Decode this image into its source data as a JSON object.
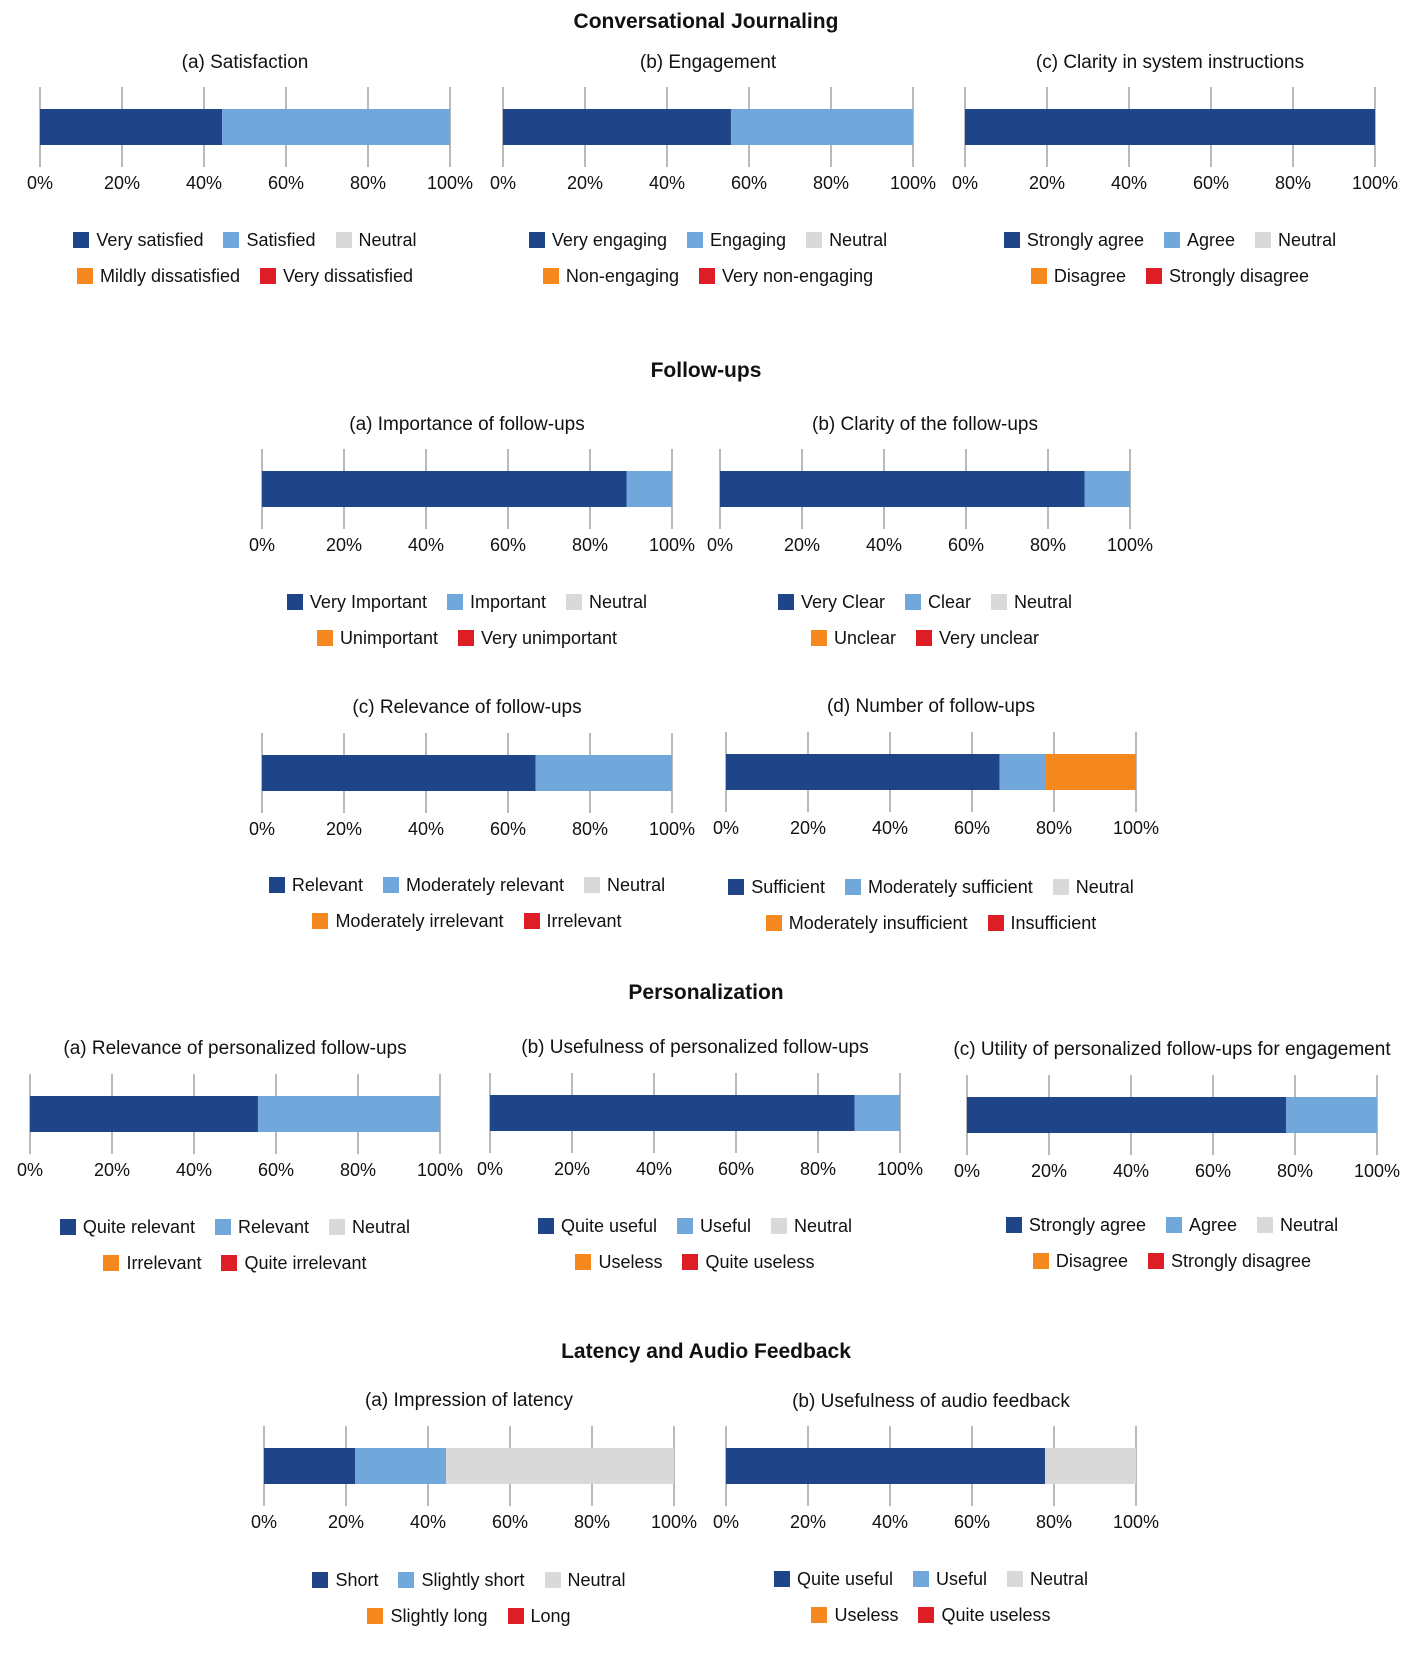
{
  "colors": {
    "dark_blue": "#1f4488",
    "light_blue": "#72a7dc",
    "neutral": "#d9d9d9",
    "orange": "#f5891f",
    "red": "#dd1e26"
  },
  "sections": [
    {
      "id": "conversational",
      "title": "Conversational Journaling"
    },
    {
      "id": "followups",
      "title": "Follow-ups"
    },
    {
      "id": "personalization",
      "title": "Personalization"
    },
    {
      "id": "latency",
      "title": "Latency and Audio Feedback"
    }
  ],
  "chart_data": [
    {
      "id": "satisfaction",
      "type": "bar",
      "orientation": "horizontal-stacked",
      "title": "(a) Satisfaction",
      "categories": [
        "Very satisfied",
        "Satisfied",
        "Neutral",
        "Mildly dissatisfied",
        "Very dissatisfied"
      ],
      "values": [
        44.4,
        55.6,
        0,
        0,
        0
      ],
      "xlim": [
        0,
        100
      ],
      "xticks": [
        "0%",
        "20%",
        "40%",
        "60%",
        "80%",
        "100%"
      ],
      "grid": true,
      "legend": "bottom"
    },
    {
      "id": "engagement",
      "type": "bar",
      "orientation": "horizontal-stacked",
      "title": "(b) Engagement",
      "categories": [
        "Very engaging",
        "Engaging",
        "Neutral",
        "Non-engaging",
        "Very non-engaging"
      ],
      "values": [
        55.6,
        44.4,
        0,
        0,
        0
      ],
      "xlim": [
        0,
        100
      ],
      "xticks": [
        "0%",
        "20%",
        "40%",
        "60%",
        "80%",
        "100%"
      ],
      "grid": true,
      "legend": "bottom"
    },
    {
      "id": "clarity-instructions",
      "type": "bar",
      "orientation": "horizontal-stacked",
      "title": "(c) Clarity in system instructions",
      "categories": [
        "Strongly agree",
        "Agree",
        "Neutral",
        "Disagree",
        "Strongly disagree"
      ],
      "values": [
        100,
        0,
        0,
        0,
        0
      ],
      "xlim": [
        0,
        100
      ],
      "xticks": [
        "0%",
        "20%",
        "40%",
        "60%",
        "80%",
        "100%"
      ],
      "grid": true,
      "legend": "bottom"
    },
    {
      "id": "importance-followups",
      "type": "bar",
      "orientation": "horizontal-stacked",
      "title": "(a) Importance of follow-ups",
      "categories": [
        "Very Important",
        "Important",
        "Neutral",
        "Unimportant",
        "Very unimportant"
      ],
      "values": [
        88.9,
        11.1,
        0,
        0,
        0
      ],
      "xlim": [
        0,
        100
      ],
      "xticks": [
        "0%",
        "20%",
        "40%",
        "60%",
        "80%",
        "100%"
      ],
      "grid": true,
      "legend": "bottom"
    },
    {
      "id": "clarity-followups",
      "type": "bar",
      "orientation": "horizontal-stacked",
      "title": "(b) Clarity of the follow-ups",
      "categories": [
        "Very Clear",
        "Clear",
        "Neutral",
        "Unclear",
        "Very unclear"
      ],
      "values": [
        88.9,
        11.1,
        0,
        0,
        0
      ],
      "xlim": [
        0,
        100
      ],
      "xticks": [
        "0%",
        "20%",
        "40%",
        "60%",
        "80%",
        "100%"
      ],
      "grid": true,
      "legend": "bottom"
    },
    {
      "id": "relevance-followups",
      "type": "bar",
      "orientation": "horizontal-stacked",
      "title": "(c) Relevance of follow-ups",
      "categories": [
        "Relevant",
        "Moderately relevant",
        "Neutral",
        "Moderately irrelevant",
        "Irrelevant"
      ],
      "values": [
        66.7,
        33.3,
        0,
        0,
        0
      ],
      "xlim": [
        0,
        100
      ],
      "xticks": [
        "0%",
        "20%",
        "40%",
        "60%",
        "80%",
        "100%"
      ],
      "grid": true,
      "legend": "bottom"
    },
    {
      "id": "number-followups",
      "type": "bar",
      "orientation": "horizontal-stacked",
      "title": "(d) Number of follow-ups",
      "categories": [
        "Sufficient",
        "Moderately sufficient",
        "Neutral",
        "Moderately insufficient",
        "Insufficient"
      ],
      "values": [
        66.7,
        11.1,
        0,
        22.2,
        0
      ],
      "xlim": [
        0,
        100
      ],
      "xticks": [
        "0%",
        "20%",
        "40%",
        "60%",
        "80%",
        "100%"
      ],
      "grid": true,
      "legend": "bottom"
    },
    {
      "id": "relevance-personalized",
      "type": "bar",
      "orientation": "horizontal-stacked",
      "title": "(a) Relevance of personalized follow-ups",
      "categories": [
        "Quite relevant",
        "Relevant",
        "Neutral",
        "Irrelevant",
        "Quite irrelevant"
      ],
      "values": [
        55.6,
        44.4,
        0,
        0,
        0
      ],
      "xlim": [
        0,
        100
      ],
      "xticks": [
        "0%",
        "20%",
        "40%",
        "60%",
        "80%",
        "100%"
      ],
      "grid": true,
      "legend": "bottom"
    },
    {
      "id": "usefulness-personalized",
      "type": "bar",
      "orientation": "horizontal-stacked",
      "title": "(b) Usefulness of personalized follow-ups",
      "categories": [
        "Quite useful",
        "Useful",
        "Neutral",
        "Useless",
        "Quite useless"
      ],
      "values": [
        88.9,
        11.1,
        0,
        0,
        0
      ],
      "xlim": [
        0,
        100
      ],
      "xticks": [
        "0%",
        "20%",
        "40%",
        "60%",
        "80%",
        "100%"
      ],
      "grid": true,
      "legend": "bottom"
    },
    {
      "id": "utility-personalized",
      "type": "bar",
      "orientation": "horizontal-stacked",
      "title": "(c) Utility of personalized follow-ups for engagement",
      "categories": [
        "Strongly agree",
        "Agree",
        "Neutral",
        "Disagree",
        "Strongly disagree"
      ],
      "values": [
        77.8,
        22.2,
        0,
        0,
        0
      ],
      "xlim": [
        0,
        100
      ],
      "xticks": [
        "0%",
        "20%",
        "40%",
        "60%",
        "80%",
        "100%"
      ],
      "grid": true,
      "legend": "bottom"
    },
    {
      "id": "latency",
      "type": "bar",
      "orientation": "horizontal-stacked",
      "title": "(a) Impression of latency",
      "categories": [
        "Short",
        "Slightly short",
        "Neutral",
        "Slightly long",
        "Long"
      ],
      "values": [
        22.2,
        22.2,
        55.6,
        0,
        0
      ],
      "xlim": [
        0,
        100
      ],
      "xticks": [
        "0%",
        "20%",
        "40%",
        "60%",
        "80%",
        "100%"
      ],
      "grid": true,
      "legend": "bottom"
    },
    {
      "id": "audio-feedback",
      "type": "bar",
      "orientation": "horizontal-stacked",
      "title": "(b) Usefulness of audio feedback",
      "categories": [
        "Quite useful",
        "Useful",
        "Neutral",
        "Useless",
        "Quite useless"
      ],
      "values": [
        77.8,
        0,
        22.2,
        0,
        0
      ],
      "xlim": [
        0,
        100
      ],
      "xticks": [
        "0%",
        "20%",
        "40%",
        "60%",
        "80%",
        "100%"
      ],
      "grid": true,
      "legend": "bottom"
    }
  ]
}
